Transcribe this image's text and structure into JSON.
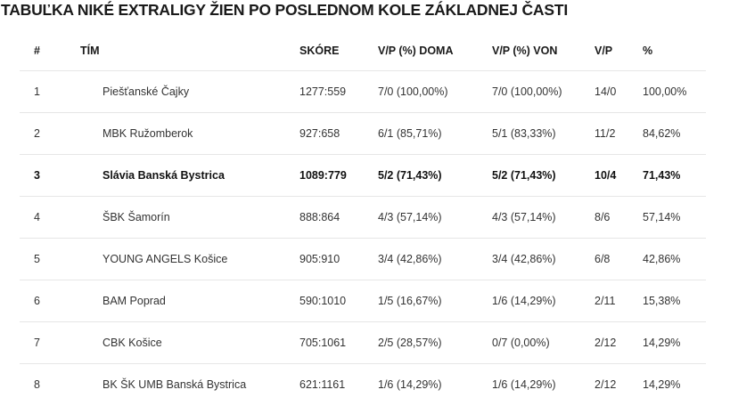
{
  "title": "TABUĽKA NIKÉ EXTRALIGY ŽIEN PO POSLEDNOM KOLE ZÁKLADNEJ ČASTI",
  "table": {
    "headers": {
      "rank": "#",
      "team": "TÍM",
      "score": "SKÓRE",
      "home": "V/P (%) DOMA",
      "away": "V/P (%) VON",
      "wl": "V/P",
      "pct": "%"
    },
    "rows": [
      {
        "rank": "1",
        "team": "Piešťanské Čajky",
        "score": "1277:559",
        "home": "7/0 (100,00%)",
        "away": "7/0 (100,00%)",
        "wl": "14/0",
        "pct": "100,00%",
        "highlight": false
      },
      {
        "rank": "2",
        "team": "MBK Ružomberok",
        "score": "927:658",
        "home": "6/1 (85,71%)",
        "away": "5/1 (83,33%)",
        "wl": "11/2",
        "pct": "84,62%",
        "highlight": false
      },
      {
        "rank": "3",
        "team": "Slávia Banská Bystrica",
        "score": "1089:779",
        "home": "5/2 (71,43%)",
        "away": "5/2 (71,43%)",
        "wl": "10/4",
        "pct": "71,43%",
        "highlight": true
      },
      {
        "rank": "4",
        "team": "ŠBK Šamorín",
        "score": "888:864",
        "home": "4/3 (57,14%)",
        "away": "4/3 (57,14%)",
        "wl": "8/6",
        "pct": "57,14%",
        "highlight": false
      },
      {
        "rank": "5",
        "team": "YOUNG ANGELS Košice",
        "score": "905:910",
        "home": "3/4 (42,86%)",
        "away": "3/4 (42,86%)",
        "wl": "6/8",
        "pct": "42,86%",
        "highlight": false
      },
      {
        "rank": "6",
        "team": "BAM Poprad",
        "score": "590:1010",
        "home": "1/5 (16,67%)",
        "away": "1/6 (14,29%)",
        "wl": "2/11",
        "pct": "15,38%",
        "highlight": false
      },
      {
        "rank": "7",
        "team": "CBK Košice",
        "score": "705:1061",
        "home": "2/5 (28,57%)",
        "away": "0/7 (0,00%)",
        "wl": "2/12",
        "pct": "14,29%",
        "highlight": false
      },
      {
        "rank": "8",
        "team": "BK ŠK UMB Banská Bystrica",
        "score": "621:1161",
        "home": "1/6 (14,29%)",
        "away": "1/6 (14,29%)",
        "wl": "2/12",
        "pct": "14,29%",
        "highlight": false
      }
    ]
  }
}
